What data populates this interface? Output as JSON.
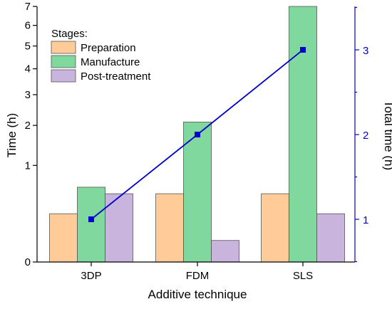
{
  "chart_data": {
    "type": "bar",
    "categories": [
      "3DP",
      "FDM",
      "SLS"
    ],
    "xlabel": "Additive technique",
    "ylabel": "Time (h)",
    "y2label": "Total time (h)",
    "y_scale": "square-root",
    "ylim": [
      0,
      7
    ],
    "y_ticks": [
      "0",
      "1",
      "2",
      "3",
      "4",
      "5",
      "6",
      "7"
    ],
    "y2lim": [
      0.5,
      3.5
    ],
    "y2_ticks": [
      "1",
      "2",
      "3"
    ],
    "legend_title": "Stages:",
    "legend_position": "top-left",
    "grid": false,
    "series": [
      {
        "name": "Preparation",
        "color": "#FFCC99",
        "values": [
          0.25,
          0.5,
          0.5
        ]
      },
      {
        "name": "Manufacture",
        "color": "#80D89E",
        "values": [
          0.6,
          2.1,
          7.0
        ]
      },
      {
        "name": "Post-treatment",
        "color": "#C8B4DC",
        "values": [
          0.5,
          0.05,
          0.25
        ]
      }
    ],
    "line_series": {
      "axis": "right",
      "color": "#0000CC",
      "values": [
        1,
        2,
        3
      ]
    }
  }
}
